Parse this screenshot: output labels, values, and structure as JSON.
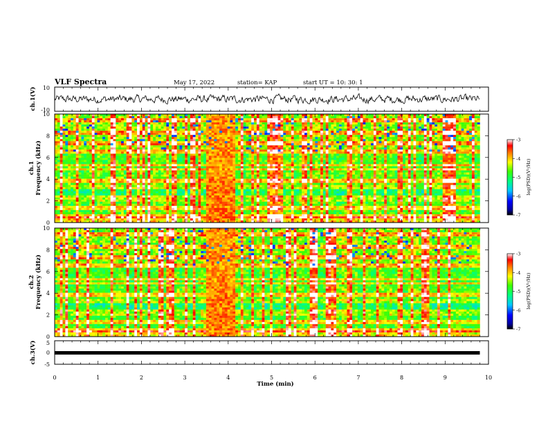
{
  "header": {
    "title": "VLF Spectra",
    "date": "May 17, 2022",
    "station": "station= KAP",
    "start": "start  UT  =   10: 30: 1"
  },
  "chart_data": [
    {
      "type": "line",
      "ylabel": "ch.1(V)",
      "ylim": [
        -10,
        10
      ],
      "y_ticks": [
        "10",
        "-10"
      ],
      "description_free": true,
      "waveform": "noisy signal around 0 V, amplitude ~ ±4 V",
      "xlim": [
        0,
        9.8
      ]
    },
    {
      "type": "heatmap",
      "ylabel": "ch.1\nFrequency  (kHz)",
      "ylim": [
        0,
        10
      ],
      "y_ticks": [
        "0",
        "2",
        "4",
        "6",
        "8",
        "10"
      ],
      "xlim": [
        0,
        9.8
      ],
      "colorbar": {
        "label": "log(PSD)(V²/Hz)",
        "range": [
          -7,
          -3
        ],
        "ticks": [
          "-3",
          "-4",
          "-5",
          "-6",
          "-7"
        ]
      },
      "features": {
        "strong_band_x_range": [
          3.5,
          4.15
        ],
        "horizontal_lines_khz": [
          0.5,
          1.4,
          2.1,
          2.4,
          3.2,
          3.8,
          4.9,
          5.3,
          6.5,
          7.3,
          8.2,
          9.4
        ]
      }
    },
    {
      "type": "heatmap",
      "ylabel": "ch.2\nFrequency  (kHz)",
      "ylim": [
        0,
        10
      ],
      "y_ticks": [
        "0",
        "2",
        "4",
        "6",
        "8",
        "10"
      ],
      "xlim": [
        0,
        9.8
      ],
      "colorbar": {
        "label": "log(PSD)(V²/Hz)",
        "range": [
          -7,
          -3
        ],
        "ticks": [
          "-3",
          "-4",
          "-5",
          "-6",
          "-7"
        ]
      },
      "features": {
        "strong_band_x_range": [
          3.5,
          4.15
        ],
        "horizontal_lines_khz": [
          0.5,
          1.4,
          2.1,
          2.4,
          3.2,
          3.8,
          4.9,
          5.3,
          6.5,
          7.3,
          8.2,
          9.4
        ]
      }
    },
    {
      "type": "line",
      "ylabel": "ch.3(V)",
      "ylim": [
        -5,
        5
      ],
      "y_ticks": [
        "5",
        "0",
        "-5"
      ],
      "constant_value": 0,
      "xlim": [
        0,
        9.8
      ]
    }
  ],
  "xaxis": {
    "label": "Time  (min)",
    "range": [
      0,
      10
    ],
    "ticks": [
      "0",
      "1",
      "2",
      "3",
      "4",
      "5",
      "6",
      "7",
      "8",
      "9",
      "10"
    ]
  }
}
